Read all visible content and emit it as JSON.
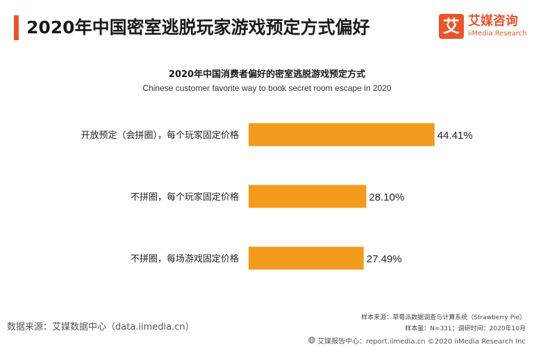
{
  "header": {
    "title": "2020年中国密室逃脱玩家游戏预定方式偏好",
    "logo_mark": "艾",
    "logo_cn": "艾媒咨询",
    "logo_en": "iiMedia Research"
  },
  "chart_data": {
    "type": "bar",
    "orientation": "horizontal",
    "title": "2020年中国消费者偏好的密室逃脱游戏预定方式",
    "subtitle": "Chinese customer favorite way to book secret room escape in 2020",
    "categories": [
      "开放预定（会拼圈），每个玩家固定价格",
      "不拼圈，每个玩家固定价格",
      "不拼圈，每场游戏固定价格"
    ],
    "values": [
      44.41,
      28.1,
      27.49
    ],
    "value_labels": [
      "44.41%",
      "28.10%",
      "27.49%"
    ],
    "xlim": [
      0,
      50
    ],
    "grid": false,
    "legend": "none",
    "bar_color": "#f29b1d"
  },
  "footer": {
    "source_left": "数据来源：艾媒数据中心（data.iimedia.cn）",
    "sample_source": "样本来源：草莓派数据调查与计算系统（Strawberry Pie）",
    "sample_size": "样本量：N=331；调研时间：2020年10月",
    "brand_line": "艾媒报告中心：report.iimedia.cn ©2020 iiMedia Research Inc"
  },
  "colors": {
    "accent": "#e8542c",
    "bar": "#f29b1d"
  },
  "icons": {
    "footer_icon": "globe-icon"
  }
}
